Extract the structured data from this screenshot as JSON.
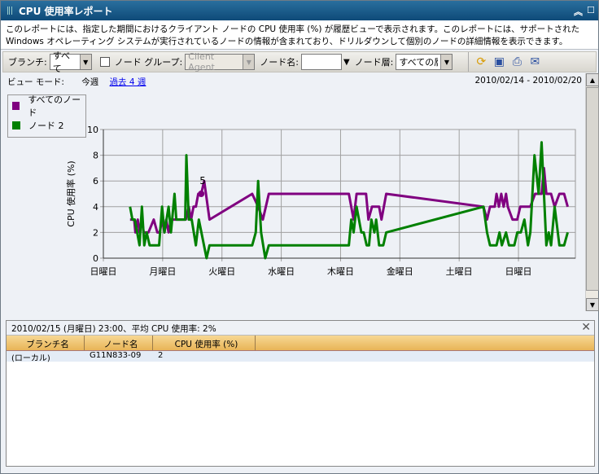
{
  "window": {
    "title": "CPU 使用率レポート",
    "collapse_icon": "double-chevron-up",
    "maximize_icon": "square"
  },
  "description": "このレポートには、指定した期間におけるクライアント ノードの CPU 使用率 (%) が履歴ビューで表示されます。このレポートには、サポートされた Windows オペレーティング システムが実行されているノードの情報が含まれており、ドリルダウンして個別のノードの詳細情報を表示できます。",
  "toolbar": {
    "branch_label": "ブランチ:",
    "branch_value": "すべて",
    "node_group_label": "ノード グループ:",
    "node_group_value": "Client Agent",
    "node_name_label": "ノード名:",
    "node_name_value": "",
    "node_tier_label": "ノード層:",
    "node_tier_value": "すべての層"
  },
  "view": {
    "mode_label": "ビュー モード:",
    "this_week": "今週",
    "past_4_weeks": "過去 4 週",
    "date_range": "2010/02/14 - 2010/02/20"
  },
  "chart_data": {
    "type": "line",
    "ylabel": "CPU 使用率 (%)",
    "ylim": [
      0,
      10
    ],
    "yticks": [
      0,
      2,
      4,
      6,
      8,
      10
    ],
    "xticks": [
      "日曜日",
      "月曜日",
      "火曜日",
      "水曜日",
      "木曜日",
      "金曜日",
      "土曜日",
      "日曜日"
    ],
    "xlim": [
      0,
      7.96
    ],
    "grid": true,
    "legend": "top-left",
    "annotation": {
      "text": "5",
      "x": 1.65,
      "y": 5
    },
    "series": [
      {
        "name": "すべてのノード",
        "color": "#800080",
        "x": [
          0.45,
          0.52,
          0.54,
          0.58,
          0.61,
          0.65,
          0.68,
          0.76,
          0.85,
          0.91,
          0.95,
          0.99,
          1.03,
          1.06,
          1.1,
          1.14,
          1.2,
          1.39,
          1.44,
          1.48,
          1.52,
          1.56,
          1.6,
          1.65,
          1.7,
          1.73,
          1.79,
          2.51,
          2.61,
          2.69,
          2.79,
          4.14,
          4.22,
          4.27,
          4.43,
          4.47,
          4.53,
          4.65,
          4.69,
          4.77,
          6.41,
          6.47,
          6.52,
          6.6,
          6.63,
          6.67,
          6.71,
          6.75,
          6.79,
          6.82,
          6.9,
          6.98,
          7.03,
          7.2,
          7.28,
          7.39,
          7.43,
          7.47,
          7.55,
          7.61,
          7.69,
          7.77,
          7.83
        ],
        "y": [
          3,
          3,
          2,
          3,
          2,
          3,
          2,
          2,
          3,
          2,
          2,
          3,
          2,
          3,
          2,
          3,
          3,
          3,
          4,
          3,
          4,
          4,
          5,
          5,
          6,
          5,
          3,
          5,
          4,
          3,
          5,
          5,
          3,
          5,
          5,
          3,
          4,
          4,
          3,
          5,
          4,
          3,
          4,
          4,
          5,
          4,
          5,
          4,
          5,
          4,
          3,
          3,
          4,
          4,
          5,
          5,
          7,
          5,
          5,
          4,
          5,
          5,
          4
        ]
      },
      {
        "name": "ノード 2",
        "color": "#008000",
        "x": [
          0.45,
          0.49,
          0.53,
          0.61,
          0.65,
          0.69,
          0.73,
          0.78,
          0.94,
          0.99,
          1.03,
          1.1,
          1.14,
          1.2,
          1.23,
          1.38,
          1.4,
          1.44,
          1.49,
          1.56,
          1.61,
          1.74,
          1.79,
          2.51,
          2.57,
          2.61,
          2.66,
          2.73,
          2.79,
          4.14,
          4.18,
          4.22,
          4.27,
          4.35,
          4.39,
          4.44,
          4.48,
          4.52,
          4.57,
          4.6,
          4.65,
          4.72,
          4.77,
          6.41,
          6.47,
          6.52,
          6.63,
          6.68,
          6.72,
          6.79,
          6.84,
          6.93,
          6.98,
          7.04,
          7.1,
          7.16,
          7.2,
          7.27,
          7.34,
          7.39,
          7.47,
          7.51,
          7.55,
          7.61,
          7.69,
          7.77,
          7.83
        ],
        "y": [
          4,
          3,
          3,
          1,
          4,
          1,
          2,
          1,
          1,
          4,
          2,
          4,
          2,
          5,
          3,
          3,
          8,
          3,
          3,
          1,
          3,
          0,
          1,
          1,
          2,
          6,
          2,
          0,
          1,
          1,
          3,
          2,
          4,
          2,
          2,
          1,
          1,
          3,
          2,
          3,
          1,
          1,
          2,
          4,
          2,
          1,
          1,
          2,
          1,
          2,
          1,
          1,
          2,
          2,
          3,
          1,
          2,
          8,
          5,
          9,
          1,
          2,
          1,
          4,
          1,
          1,
          2
        ]
      }
    ]
  },
  "detail": {
    "header": "2010/02/15 (月曜日) 23:00、平均 CPU 使用率: 2%",
    "columns": [
      "ブランチ名",
      "ノード名",
      "CPU 使用率 (%)"
    ],
    "rows": [
      [
        "(ローカル)",
        "G11N833-09",
        "2"
      ]
    ]
  }
}
